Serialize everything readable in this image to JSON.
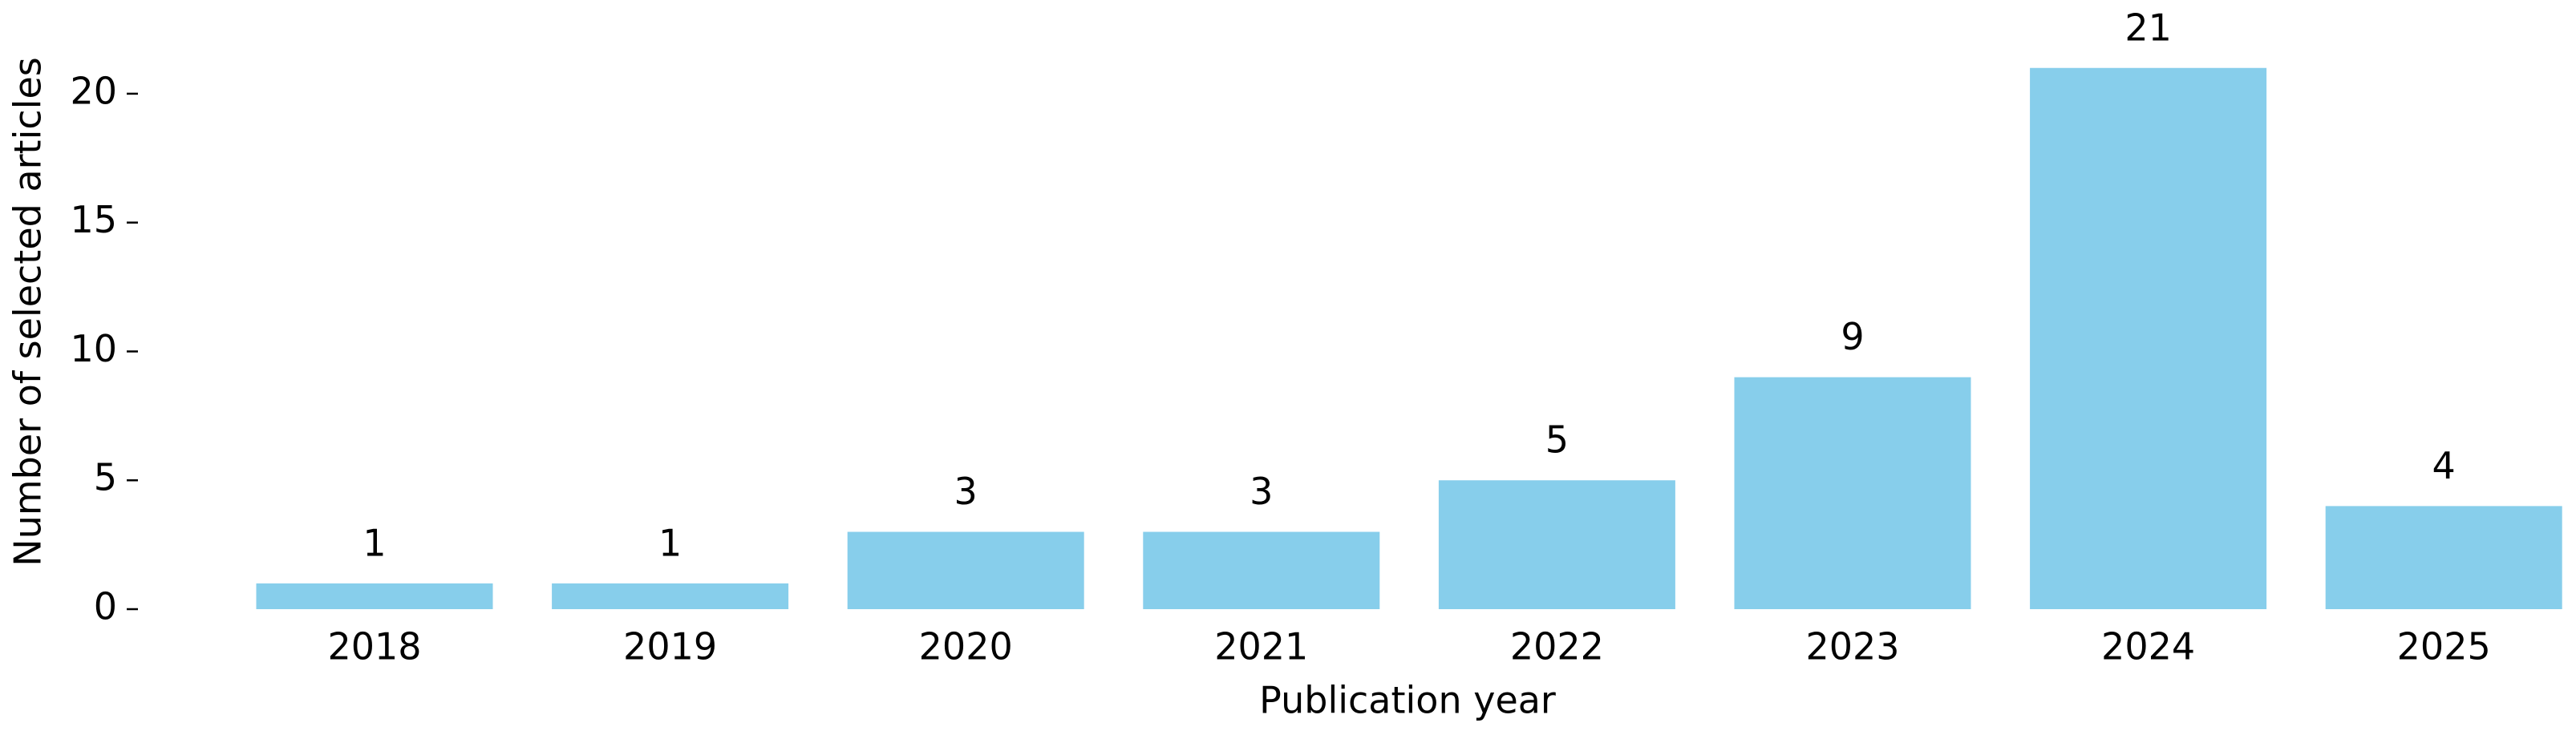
{
  "chart_data": {
    "type": "bar",
    "categories": [
      "2018",
      "2019",
      "2020",
      "2021",
      "2022",
      "2023",
      "2024",
      "2025"
    ],
    "values": [
      1,
      1,
      3,
      3,
      5,
      9,
      21,
      4
    ],
    "color": "#87ceeb",
    "xlabel": "Publication year",
    "ylabel": "Number of selected articles",
    "ylim": [
      0,
      22.05
    ],
    "yticks": [
      0,
      5,
      10,
      15,
      20
    ],
    "grid": false
  }
}
